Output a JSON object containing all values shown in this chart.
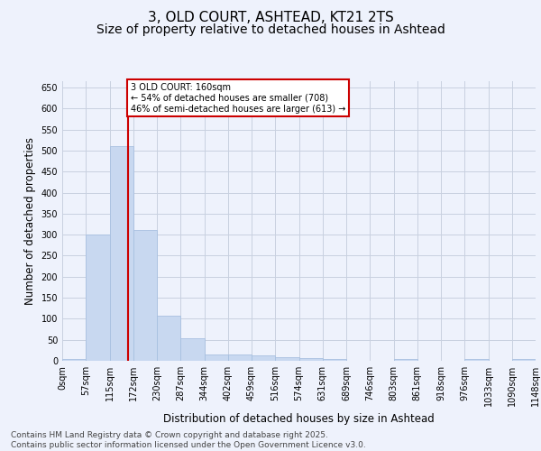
{
  "title1": "3, OLD COURT, ASHTEAD, KT21 2TS",
  "title2": "Size of property relative to detached houses in Ashtead",
  "xlabel": "Distribution of detached houses by size in Ashtead",
  "ylabel": "Number of detached properties",
  "bar_values": [
    5,
    300,
    510,
    310,
    107,
    53,
    14,
    15,
    12,
    9,
    7,
    5,
    0,
    0,
    4,
    0,
    0,
    4,
    0,
    4
  ],
  "bin_labels": [
    "0sqm",
    "57sqm",
    "115sqm",
    "172sqm",
    "230sqm",
    "287sqm",
    "344sqm",
    "402sqm",
    "459sqm",
    "516sqm",
    "574sqm",
    "631sqm",
    "689sqm",
    "746sqm",
    "803sqm",
    "861sqm",
    "918sqm",
    "976sqm",
    "1033sqm",
    "1090sqm",
    "1148sqm"
  ],
  "bar_color": "#c8d8f0",
  "bar_edge_color": "#a8c0e0",
  "grid_color": "#c8d0e0",
  "bg_color": "#eef2fc",
  "vline_x": 2.0,
  "vline_color": "#cc0000",
  "annotation_text": "3 OLD COURT: 160sqm\n← 54% of detached houses are smaller (708)\n46% of semi-detached houses are larger (613) →",
  "annotation_box_color": "#ffffff",
  "annotation_box_edge": "#cc0000",
  "ylim": [
    0,
    665
  ],
  "yticks": [
    0,
    50,
    100,
    150,
    200,
    250,
    300,
    350,
    400,
    450,
    500,
    550,
    600,
    650
  ],
  "footer": "Contains HM Land Registry data © Crown copyright and database right 2025.\nContains public sector information licensed under the Open Government Licence v3.0.",
  "title_fontsize": 11,
  "subtitle_fontsize": 10,
  "tick_fontsize": 7,
  "label_fontsize": 8.5,
  "footer_fontsize": 6.5
}
